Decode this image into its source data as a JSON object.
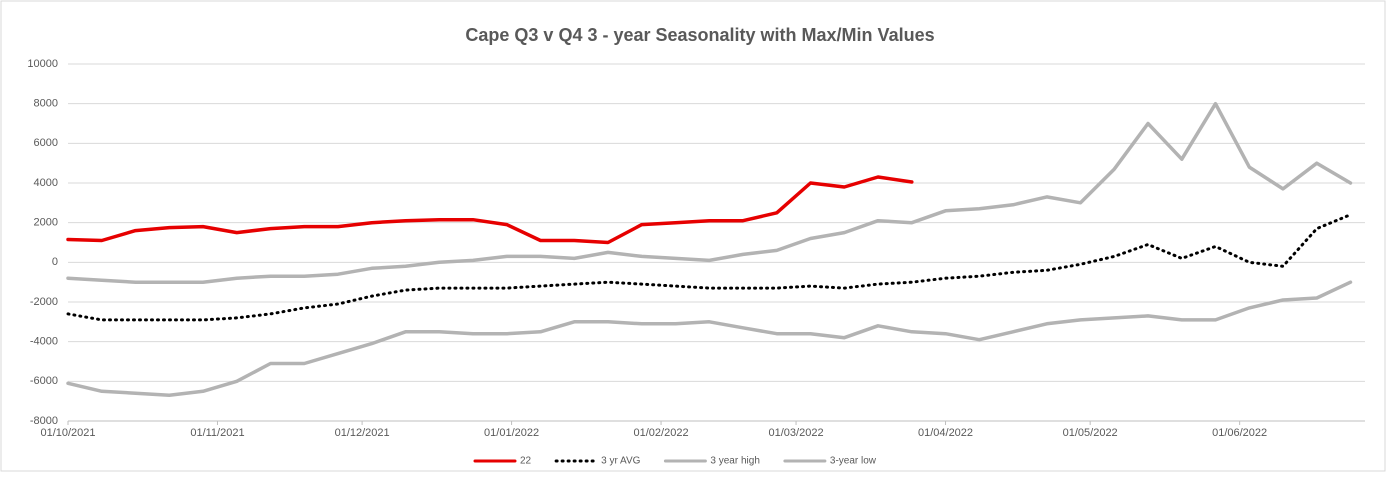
{
  "chart_data": {
    "type": "line",
    "title": "Cape Q3  v Q4 3 - year Seasonality with Max/Min Values",
    "x": [
      "01/10/2021",
      "08/10/2021",
      "15/10/2021",
      "22/10/2021",
      "29/10/2021",
      "05/11/2021",
      "12/11/2021",
      "19/11/2021",
      "26/11/2021",
      "03/12/2021",
      "10/12/2021",
      "17/12/2021",
      "24/12/2021",
      "31/12/2021",
      "07/01/2022",
      "14/01/2022",
      "21/01/2022",
      "28/01/2022",
      "04/02/2022",
      "11/02/2022",
      "18/02/2022",
      "25/02/2022",
      "04/03/2022",
      "11/03/2022",
      "18/03/2022",
      "25/03/2022",
      "01/04/2022",
      "08/04/2022",
      "15/04/2022",
      "22/04/2022",
      "29/04/2022",
      "06/05/2022",
      "13/05/2022",
      "20/05/2022",
      "27/05/2022",
      "03/06/2022",
      "10/06/2022",
      "17/06/2022",
      "24/06/2022"
    ],
    "series": [
      {
        "name": "22",
        "color": "#e60000",
        "style": "solid",
        "values": [
          1150,
          1100,
          1600,
          1750,
          1800,
          1500,
          1700,
          1800,
          1800,
          2000,
          2100,
          2150,
          2150,
          1900,
          1100,
          1100,
          1000,
          1900,
          2000,
          2100,
          2100,
          2500,
          4000,
          3800,
          4300,
          4050,
          null,
          null,
          null,
          null,
          null,
          null,
          null,
          null,
          null,
          null,
          null,
          null,
          null
        ]
      },
      {
        "name": "3 yr AVG",
        "color": "#000000",
        "style": "dotted",
        "values": [
          -2600,
          -2900,
          -2900,
          -2900,
          -2900,
          -2800,
          -2600,
          -2300,
          -2100,
          -1700,
          -1400,
          -1300,
          -1300,
          -1300,
          -1200,
          -1100,
          -1000,
          -1100,
          -1200,
          -1300,
          -1300,
          -1300,
          -1200,
          -1300,
          -1100,
          -1000,
          -800,
          -700,
          -500,
          -400,
          -100,
          300,
          900,
          200,
          800,
          0,
          -200,
          1700,
          2400
        ]
      },
      {
        "name": "3 year high",
        "color": "#b3b3b3",
        "style": "solid",
        "values": [
          -800,
          -900,
          -1000,
          -1000,
          -1000,
          -800,
          -700,
          -700,
          -600,
          -300,
          -200,
          0,
          100,
          300,
          300,
          200,
          500,
          300,
          200,
          100,
          400,
          600,
          1200,
          1500,
          2100,
          2000,
          2600,
          2700,
          2900,
          3300,
          3000,
          4700,
          7000,
          5200,
          8000,
          4800,
          3700,
          5000,
          4000
        ]
      },
      {
        "name": "3-year low",
        "color": "#b3b3b3",
        "style": "solid",
        "values": [
          -6100,
          -6500,
          -6600,
          -6700,
          -6500,
          -6000,
          -5100,
          -5100,
          -4600,
          -4100,
          -3500,
          -3500,
          -3600,
          -3600,
          -3500,
          -3000,
          -3000,
          -3100,
          -3100,
          -3000,
          -3300,
          -3600,
          -3600,
          -3800,
          -3200,
          -3500,
          -3600,
          -3900,
          -3500,
          -3100,
          -2900,
          -2800,
          -2700,
          -2900,
          -2900,
          -2300,
          -1900,
          -1800,
          -1000
        ]
      }
    ],
    "xlim": [
      "01/10/2021",
      "27/06/2022"
    ],
    "xticks": [
      "01/10/2021",
      "01/11/2021",
      "01/12/2021",
      "01/01/2022",
      "01/02/2022",
      "01/03/2022",
      "01/04/2022",
      "01/05/2022",
      "01/06/2022"
    ],
    "ylim": [
      -8000,
      10000
    ],
    "yticks": [
      -8000,
      -6000,
      -4000,
      -2000,
      0,
      2000,
      4000,
      6000,
      8000,
      10000
    ],
    "grid": true,
    "legend": "bottom"
  }
}
